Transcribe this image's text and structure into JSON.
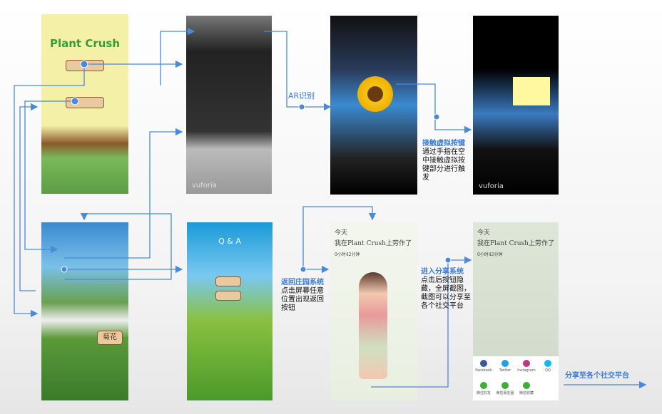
{
  "home": {
    "title": "Plant Crush"
  },
  "ar_label": "AR识别",
  "logo": "vuforia",
  "qa_title": "Q & A",
  "garden_sign": "菊花",
  "diary": {
    "line1": "今天",
    "line2": "我在Plant Crush上劳作了",
    "line3": "0小时42分钟"
  },
  "annotations": [
    {
      "heading": "接触虚拟按键",
      "body": "通过手指在空中接触虚拟按键部分进行触发"
    },
    {
      "heading": "返回庄园系统",
      "body": "点击屏幕任意位置出现返回按钮"
    },
    {
      "heading": "进入分享系统",
      "body": "点击后按钮隐藏，全屏截图，截图可以分享至各个社交平台"
    }
  ],
  "share_label": "分享至各个社交平台",
  "share_targets": [
    "Facebook",
    "Twitter",
    "Instagram",
    "QQ",
    "微信好友",
    "微信朋友圈",
    "微信收藏"
  ]
}
